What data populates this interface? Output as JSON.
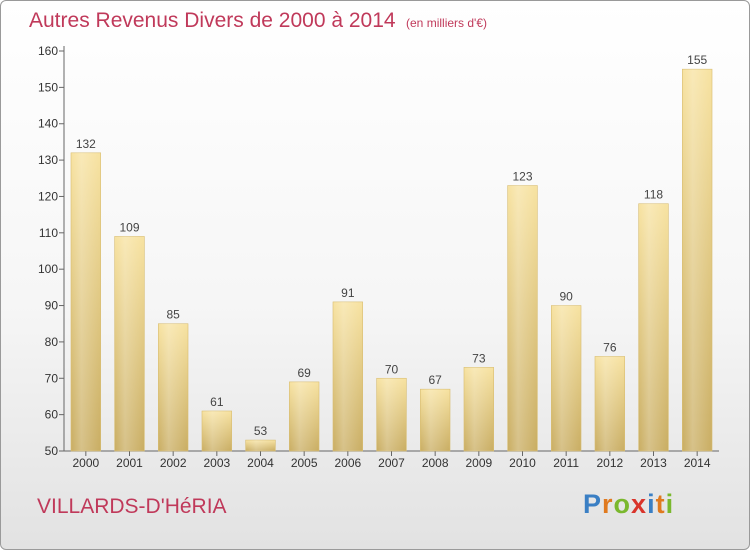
{
  "title": "Autres Revenus Divers de 2000 à 2014",
  "subtitle": "(en milliers d'€)",
  "town": "VILLARDS-D'HéRIA",
  "brand": {
    "letters": [
      "P",
      "r",
      "o",
      "x",
      "i",
      "t",
      "i"
    ],
    "colors": [
      "#3a7fc4",
      "#e07a1f",
      "#7ab82e",
      "#d9342b",
      "#3a7fc4",
      "#e07a1f",
      "#7ab82e"
    ]
  },
  "chart_data": {
    "type": "bar",
    "title": "Autres Revenus Divers de 2000 à 2014",
    "subtitle": "(en milliers d'€)",
    "categories": [
      "2000",
      "2001",
      "2002",
      "2003",
      "2004",
      "2005",
      "2006",
      "2007",
      "2008",
      "2009",
      "2010",
      "2011",
      "2012",
      "2013",
      "2014"
    ],
    "values": [
      132,
      109,
      85,
      61,
      53,
      69,
      91,
      70,
      67,
      73,
      123,
      90,
      76,
      118,
      155
    ],
    "ylim": [
      50,
      160
    ],
    "yticks": [
      50,
      60,
      70,
      80,
      90,
      100,
      110,
      120,
      130,
      140,
      150,
      160
    ],
    "grid": false,
    "bar_color": "#e9cf82",
    "label_color": "#444444"
  }
}
